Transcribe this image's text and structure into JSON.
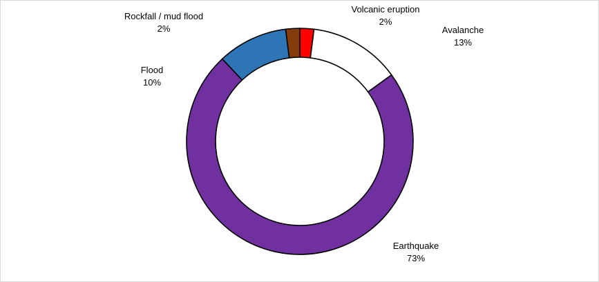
{
  "chart_data": {
    "type": "pie",
    "style": "donut",
    "start": "top",
    "direction": "clockwise",
    "legend": "none",
    "slices": [
      {
        "label": "Volcanic eruption",
        "pct_label": "2%",
        "value": 2,
        "color": "#ff0000"
      },
      {
        "label": "Avalanche",
        "pct_label": "13%",
        "value": 13,
        "color": "#ffffff"
      },
      {
        "label": "Earthquake",
        "pct_label": "73%",
        "value": 73,
        "color": "#7030a0"
      },
      {
        "label": "Flood",
        "pct_label": "10%",
        "value": 10,
        "color": "#2e75b6"
      },
      {
        "label": "Rockfall / mud flood",
        "pct_label": "2%",
        "value": 2,
        "color": "#843c0c"
      }
    ]
  }
}
